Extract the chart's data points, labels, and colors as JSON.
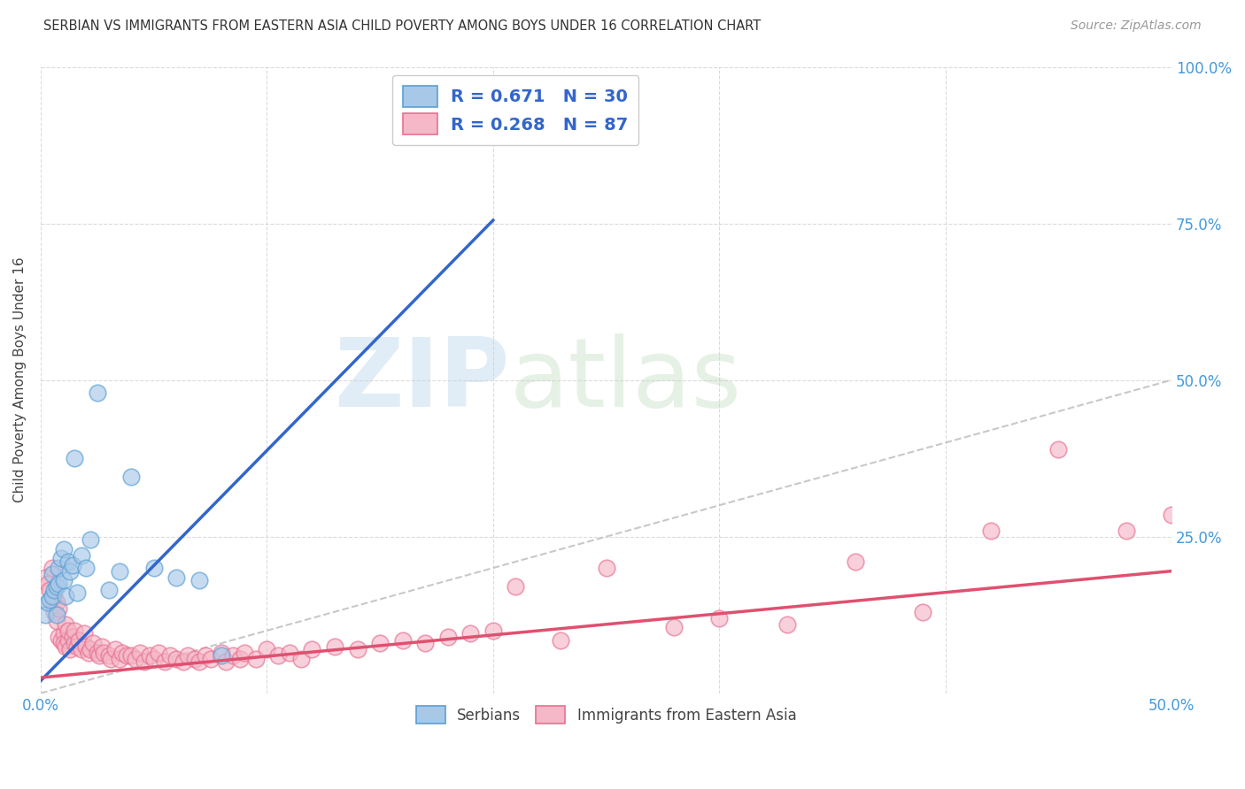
{
  "title": "SERBIAN VS IMMIGRANTS FROM EASTERN ASIA CHILD POVERTY AMONG BOYS UNDER 16 CORRELATION CHART",
  "source": "Source: ZipAtlas.com",
  "ylabel": "Child Poverty Among Boys Under 16",
  "xlim": [
    0.0,
    0.5
  ],
  "ylim": [
    0.0,
    1.0
  ],
  "xticks": [
    0.0,
    0.1,
    0.2,
    0.3,
    0.4,
    0.5
  ],
  "xticklabels": [
    "0.0%",
    "",
    "",
    "",
    "",
    "50.0%"
  ],
  "yticks": [
    0.0,
    0.25,
    0.5,
    0.75,
    1.0
  ],
  "yticklabels": [
    "",
    "25.0%",
    "50.0%",
    "75.0%",
    "100.0%"
  ],
  "blue_R": 0.671,
  "blue_N": 30,
  "pink_R": 0.268,
  "pink_N": 87,
  "legend1_label": "Serbians",
  "legend2_label": "Immigrants from Eastern Asia",
  "watermark_zip": "ZIP",
  "watermark_atlas": "atlas",
  "blue_color": "#a8c8e8",
  "pink_color": "#f4b8c8",
  "blue_edge_color": "#5a9fd4",
  "pink_edge_color": "#e87090",
  "blue_line_color": "#3366cc",
  "pink_line_color": "#e05070",
  "background_color": "#ffffff",
  "grid_color": "#cccccc",
  "blue_scatter_x": [
    0.002,
    0.003,
    0.004,
    0.005,
    0.005,
    0.006,
    0.007,
    0.007,
    0.008,
    0.008,
    0.009,
    0.01,
    0.01,
    0.011,
    0.012,
    0.013,
    0.014,
    0.015,
    0.016,
    0.018,
    0.02,
    0.022,
    0.025,
    0.03,
    0.035,
    0.04,
    0.05,
    0.06,
    0.07,
    0.08
  ],
  "blue_scatter_y": [
    0.125,
    0.145,
    0.15,
    0.155,
    0.19,
    0.165,
    0.17,
    0.125,
    0.2,
    0.175,
    0.215,
    0.18,
    0.23,
    0.155,
    0.21,
    0.195,
    0.205,
    0.375,
    0.16,
    0.22,
    0.2,
    0.245,
    0.48,
    0.165,
    0.195,
    0.345,
    0.2,
    0.185,
    0.18,
    0.06
  ],
  "pink_scatter_x": [
    0.002,
    0.003,
    0.004,
    0.005,
    0.005,
    0.006,
    0.006,
    0.007,
    0.007,
    0.008,
    0.008,
    0.009,
    0.01,
    0.01,
    0.011,
    0.011,
    0.012,
    0.012,
    0.013,
    0.014,
    0.015,
    0.015,
    0.016,
    0.017,
    0.018,
    0.019,
    0.02,
    0.021,
    0.022,
    0.023,
    0.025,
    0.026,
    0.027,
    0.028,
    0.03,
    0.031,
    0.033,
    0.035,
    0.036,
    0.038,
    0.04,
    0.042,
    0.044,
    0.046,
    0.048,
    0.05,
    0.052,
    0.055,
    0.057,
    0.06,
    0.063,
    0.065,
    0.068,
    0.07,
    0.073,
    0.075,
    0.08,
    0.082,
    0.085,
    0.088,
    0.09,
    0.095,
    0.1,
    0.105,
    0.11,
    0.115,
    0.12,
    0.13,
    0.14,
    0.15,
    0.16,
    0.17,
    0.18,
    0.19,
    0.2,
    0.21,
    0.23,
    0.25,
    0.28,
    0.3,
    0.33,
    0.36,
    0.39,
    0.42,
    0.45,
    0.48,
    0.5
  ],
  "pink_scatter_y": [
    0.185,
    0.175,
    0.165,
    0.15,
    0.2,
    0.155,
    0.13,
    0.145,
    0.115,
    0.135,
    0.09,
    0.085,
    0.095,
    0.08,
    0.075,
    0.11,
    0.085,
    0.1,
    0.07,
    0.09,
    0.08,
    0.1,
    0.075,
    0.085,
    0.07,
    0.095,
    0.075,
    0.065,
    0.07,
    0.08,
    0.065,
    0.06,
    0.075,
    0.065,
    0.06,
    0.055,
    0.07,
    0.055,
    0.065,
    0.06,
    0.06,
    0.055,
    0.065,
    0.05,
    0.06,
    0.055,
    0.065,
    0.05,
    0.06,
    0.055,
    0.05,
    0.06,
    0.055,
    0.05,
    0.06,
    0.055,
    0.065,
    0.05,
    0.06,
    0.055,
    0.065,
    0.055,
    0.07,
    0.06,
    0.065,
    0.055,
    0.07,
    0.075,
    0.07,
    0.08,
    0.085,
    0.08,
    0.09,
    0.095,
    0.1,
    0.17,
    0.085,
    0.2,
    0.105,
    0.12,
    0.11,
    0.21,
    0.13,
    0.26,
    0.39,
    0.26,
    0.285
  ],
  "blue_line_x0": 0.0,
  "blue_line_y0": 0.02,
  "blue_line_x1": 0.2,
  "blue_line_y1": 0.755,
  "pink_line_x0": 0.0,
  "pink_line_y0": 0.025,
  "pink_line_x1": 0.5,
  "pink_line_y1": 0.195
}
